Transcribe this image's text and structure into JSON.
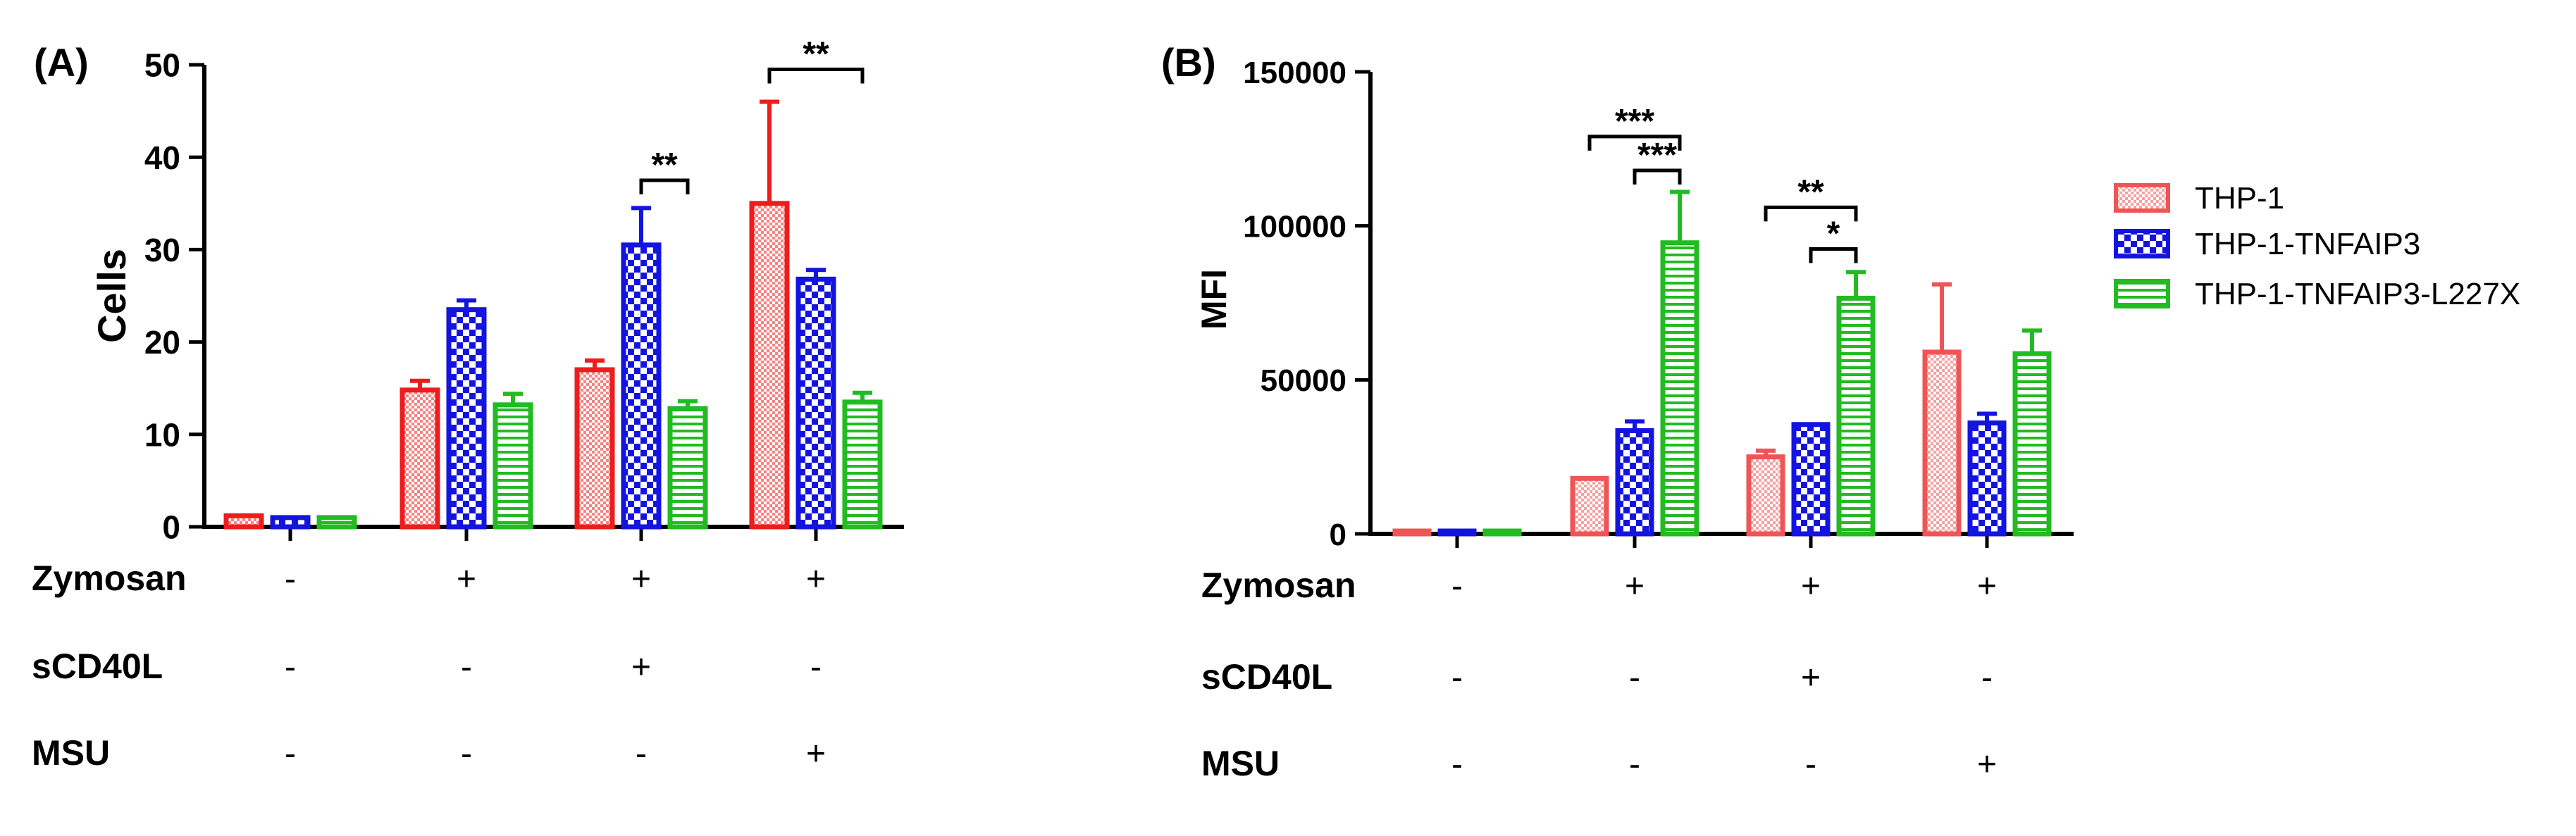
{
  "panels": [
    {
      "panel_label": "(A)",
      "chart_data": {
        "type": "bar",
        "ylabel": "Cells",
        "ylim": [
          0,
          50
        ],
        "yticks": [
          0,
          10,
          20,
          30,
          40,
          50
        ],
        "groups": 4,
        "series": [
          {
            "key": "thp1",
            "values": [
              1.2,
              14.8,
              17.0,
              35.0
            ],
            "errors": [
              0,
              1.0,
              1.0,
              11.0
            ]
          },
          {
            "key": "tnfaip3",
            "values": [
              1.0,
              23.5,
              30.5,
              26.8
            ],
            "errors": [
              0,
              1.0,
              4.0,
              1.0
            ]
          },
          {
            "key": "l227x",
            "values": [
              1.0,
              13.2,
              12.8,
              13.5
            ],
            "errors": [
              0,
              1.2,
              0.8,
              1.0
            ]
          }
        ],
        "significance": [
          {
            "group": 2,
            "from_series": 1,
            "to_series": 2,
            "y": 37.5,
            "label": "**"
          },
          {
            "group": 3,
            "from_series": 0,
            "to_series": 2,
            "y": 49.5,
            "label": "**"
          }
        ],
        "conditions": [
          {
            "name": "Zymosan",
            "values": [
              "-",
              "+",
              "+",
              "+"
            ]
          },
          {
            "name": "sCD40L",
            "values": [
              "-",
              "-",
              "+",
              "-"
            ]
          },
          {
            "name": "MSU",
            "values": [
              "-",
              "-",
              "-",
              "+"
            ]
          }
        ]
      }
    },
    {
      "panel_label": "(B)",
      "chart_data": {
        "type": "bar",
        "ylabel": "MFI",
        "ylim": [
          0,
          150000
        ],
        "yticks": [
          0,
          50000,
          100000,
          150000
        ],
        "groups": 4,
        "series": [
          {
            "key": "thp1",
            "values": [
              500,
              18000,
              25000,
              59000
            ],
            "errors": [
              0,
              0,
              2000,
              22000
            ]
          },
          {
            "key": "tnfaip3",
            "values": [
              500,
              33500,
              35500,
              36000
            ],
            "errors": [
              0,
              3000,
              0,
              3000
            ]
          },
          {
            "key": "l227x",
            "values": [
              500,
              94500,
              76500,
              58500
            ],
            "errors": [
              0,
              16500,
              8500,
              7500
            ]
          }
        ],
        "significance": [
          {
            "group": 1,
            "from_series": 0,
            "to_series": 2,
            "y": 129000,
            "label": "***"
          },
          {
            "group": 1,
            "from_series": 1,
            "to_series": 2,
            "y": 118000,
            "label": "***"
          },
          {
            "group": 2,
            "from_series": 0,
            "to_series": 2,
            "y": 106000,
            "label": "**"
          },
          {
            "group": 2,
            "from_series": 1,
            "to_series": 2,
            "y": 92500,
            "label": "*"
          }
        ],
        "conditions": [
          {
            "name": "Zymosan",
            "values": [
              "-",
              "+",
              "+",
              "+"
            ]
          },
          {
            "name": "sCD40L",
            "values": [
              "-",
              "-",
              "+",
              "-"
            ]
          },
          {
            "name": "MSU",
            "values": [
              "-",
              "-",
              "-",
              "+"
            ]
          }
        ]
      }
    }
  ],
  "legend": {
    "placement": "right",
    "entries": [
      {
        "key": "thp1",
        "label": "THP-1"
      },
      {
        "key": "tnfaip3",
        "label": "THP-1-TNFAIP3"
      },
      {
        "key": "l227x",
        "label": "THP-1-TNFAIP3-L227X"
      }
    ]
  },
  "colors": {
    "A": {
      "thp1": "#ee1c1c",
      "tnfaip3": "#1414e0",
      "l227x": "#22bb22"
    },
    "B": {
      "thp1": "#ee5555",
      "tnfaip3": "#1414e0",
      "l227x": "#22bb22"
    },
    "axis": "#000000"
  }
}
